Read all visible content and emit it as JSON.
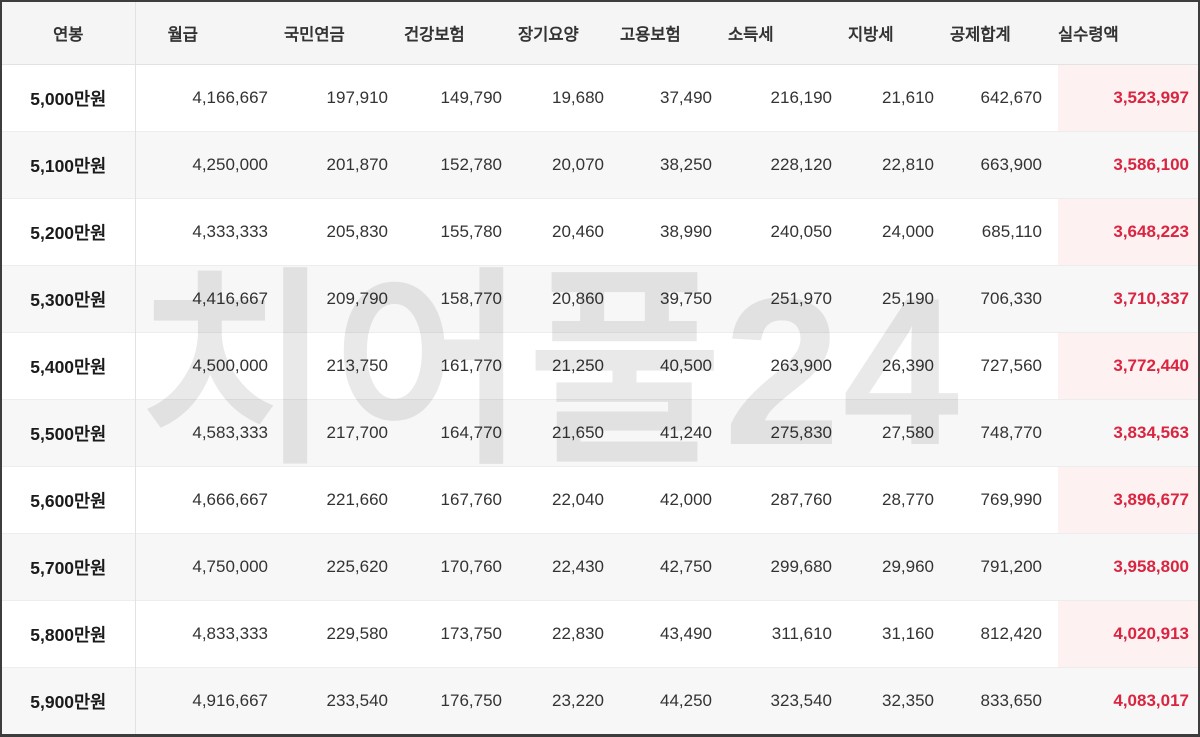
{
  "watermark": {
    "text": "치어풀24"
  },
  "colors": {
    "accent_red": "#da2440",
    "net_cell_bg": "#fdf1f1",
    "header_bg": "#f5f5f5",
    "row_stripe_bg": "#f7f7f7",
    "outer_border": "#3d3d3d",
    "divider": "#e2e2e2",
    "watermark_color": "#e9e9e9"
  },
  "table": {
    "columns": [
      {
        "key": "annual",
        "label": "연봉"
      },
      {
        "key": "monthly",
        "label": "월급"
      },
      {
        "key": "pension",
        "label": "국민연금"
      },
      {
        "key": "health",
        "label": "건강보험"
      },
      {
        "key": "care",
        "label": "장기요양"
      },
      {
        "key": "employment",
        "label": "고용보험"
      },
      {
        "key": "income-tax",
        "label": "소득세"
      },
      {
        "key": "local-tax",
        "label": "지방세"
      },
      {
        "key": "deduction",
        "label": "공제합계"
      },
      {
        "key": "net",
        "label": "실수령액"
      }
    ],
    "rows": [
      {
        "cells": [
          "5,000만원",
          "4,166,667",
          "197,910",
          "149,790",
          "19,680",
          "37,490",
          "216,190",
          "21,610",
          "642,670",
          "3,523,997"
        ]
      },
      {
        "cells": [
          "5,100만원",
          "4,250,000",
          "201,870",
          "152,780",
          "20,070",
          "38,250",
          "228,120",
          "22,810",
          "663,900",
          "3,586,100"
        ]
      },
      {
        "cells": [
          "5,200만원",
          "4,333,333",
          "205,830",
          "155,780",
          "20,460",
          "38,990",
          "240,050",
          "24,000",
          "685,110",
          "3,648,223"
        ]
      },
      {
        "cells": [
          "5,300만원",
          "4,416,667",
          "209,790",
          "158,770",
          "20,860",
          "39,750",
          "251,970",
          "25,190",
          "706,330",
          "3,710,337"
        ]
      },
      {
        "cells": [
          "5,400만원",
          "4,500,000",
          "213,750",
          "161,770",
          "21,250",
          "40,500",
          "263,900",
          "26,390",
          "727,560",
          "3,772,440"
        ]
      },
      {
        "cells": [
          "5,500만원",
          "4,583,333",
          "217,700",
          "164,770",
          "21,650",
          "41,240",
          "275,830",
          "27,580",
          "748,770",
          "3,834,563"
        ]
      },
      {
        "cells": [
          "5,600만원",
          "4,666,667",
          "221,660",
          "167,760",
          "22,040",
          "42,000",
          "287,760",
          "28,770",
          "769,990",
          "3,896,677"
        ]
      },
      {
        "cells": [
          "5,700만원",
          "4,750,000",
          "225,620",
          "170,760",
          "22,430",
          "42,750",
          "299,680",
          "29,960",
          "791,200",
          "3,958,800"
        ]
      },
      {
        "cells": [
          "5,800만원",
          "4,833,333",
          "229,580",
          "173,750",
          "22,830",
          "43,490",
          "311,610",
          "31,160",
          "812,420",
          "4,020,913"
        ]
      },
      {
        "cells": [
          "5,900만원",
          "4,916,667",
          "233,540",
          "176,750",
          "23,220",
          "44,250",
          "323,540",
          "32,350",
          "833,650",
          "4,083,017"
        ]
      }
    ]
  }
}
